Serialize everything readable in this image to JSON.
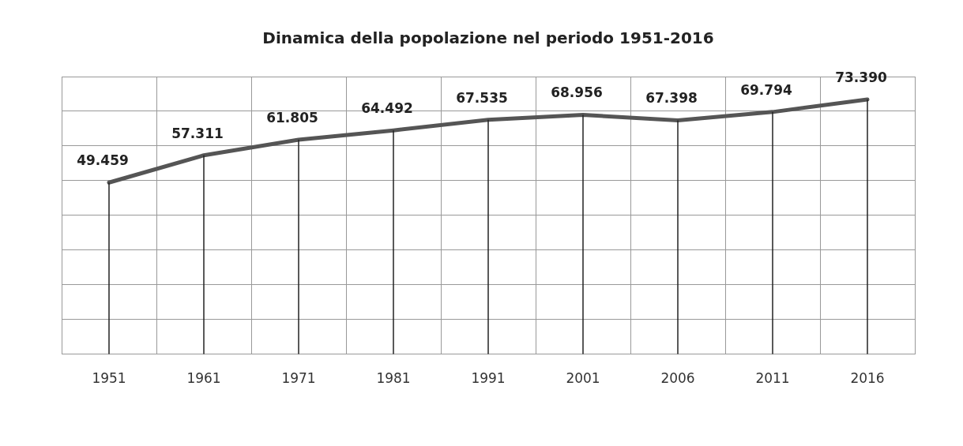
{
  "chart_data": {
    "type": "line",
    "title": "Dinamica della popolazione nel periodo 1951-2016",
    "categories": [
      "1951",
      "1961",
      "1971",
      "1981",
      "1991",
      "2001",
      "2006",
      "2011",
      "2016"
    ],
    "series": [
      {
        "color": "#555555",
        "values": [
          49459,
          57311,
          61805,
          64492,
          67535,
          68956,
          67398,
          69794,
          73390
        ],
        "value_labels": [
          "49.459",
          "57.311",
          "61.805",
          "64.492",
          "67.535",
          "68.956",
          "67.398",
          "69.794",
          "73.390"
        ]
      }
    ],
    "ylim": [
      0,
      80000
    ],
    "yticks": [
      {
        "value": 0,
        "label": null
      },
      {
        "value": 10000,
        "label": null
      },
      {
        "value": 20000,
        "label": null
      },
      {
        "value": 30000,
        "label": null
      },
      {
        "value": 40000,
        "label": null
      },
      {
        "value": 50000,
        "label": null
      },
      {
        "value": 60000,
        "label": null
      },
      {
        "value": 70000,
        "label": null
      },
      {
        "value": 80000,
        "label": null
      }
    ],
    "tick_labels": "x",
    "grid": true,
    "legend": false,
    "marker": "none",
    "line_style": "solid"
  }
}
